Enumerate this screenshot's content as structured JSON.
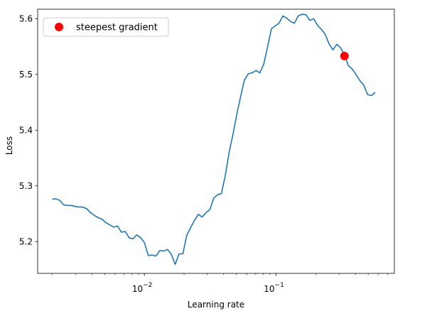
{
  "chart_data": {
    "type": "line",
    "title": "",
    "xlabel": "Learning rate",
    "ylabel": "Loss",
    "xscale": "log",
    "xlim": [
      0.00155,
      0.79
    ],
    "ylim": [
      5.143,
      5.617
    ],
    "grid": false,
    "legend_placement": "top-left",
    "x_ticks": [
      {
        "value": 0.01,
        "label": "10",
        "exp": "−2"
      },
      {
        "value": 0.1,
        "label": "10",
        "exp": "−1"
      }
    ],
    "y_ticks": [
      {
        "value": 5.2,
        "label": "5.2"
      },
      {
        "value": 5.3,
        "label": "5.3"
      },
      {
        "value": 5.4,
        "label": "5.4"
      },
      {
        "value": 5.5,
        "label": "5.5"
      },
      {
        "value": 5.6,
        "label": "5.6"
      }
    ],
    "series": [
      {
        "name": "",
        "color": "#1f77b4",
        "points": [
          [
            0.002,
            5.276
          ],
          [
            0.00213,
            5.277
          ],
          [
            0.00228,
            5.274
          ],
          [
            0.00244,
            5.266
          ],
          [
            0.00261,
            5.265
          ],
          [
            0.00279,
            5.265
          ],
          [
            0.00299,
            5.263
          ],
          [
            0.00319,
            5.262
          ],
          [
            0.00341,
            5.262
          ],
          [
            0.00365,
            5.259
          ],
          [
            0.00391,
            5.252
          ],
          [
            0.00418,
            5.247
          ],
          [
            0.00447,
            5.243
          ],
          [
            0.00478,
            5.24
          ],
          [
            0.00511,
            5.234
          ],
          [
            0.00547,
            5.23
          ],
          [
            0.00585,
            5.226
          ],
          [
            0.00626,
            5.228
          ],
          [
            0.00669,
            5.217
          ],
          [
            0.00716,
            5.218
          ],
          [
            0.00766,
            5.207
          ],
          [
            0.00819,
            5.205
          ],
          [
            0.00876,
            5.212
          ],
          [
            0.00937,
            5.207
          ],
          [
            0.01002,
            5.198
          ],
          [
            0.01071,
            5.175
          ],
          [
            0.01146,
            5.176
          ],
          [
            0.01226,
            5.174
          ],
          [
            0.01311,
            5.184
          ],
          [
            0.01402,
            5.183
          ],
          [
            0.01499,
            5.186
          ],
          [
            0.01604,
            5.177
          ],
          [
            0.01715,
            5.159
          ],
          [
            0.01834,
            5.178
          ],
          [
            0.01962,
            5.178
          ],
          [
            0.02098,
            5.211
          ],
          [
            0.02244,
            5.225
          ],
          [
            0.02401,
            5.238
          ],
          [
            0.02567,
            5.249
          ],
          [
            0.02746,
            5.244
          ],
          [
            0.02937,
            5.252
          ],
          [
            0.03141,
            5.257
          ],
          [
            0.0336,
            5.278
          ],
          [
            0.03593,
            5.284
          ],
          [
            0.03843,
            5.286
          ],
          [
            0.0411,
            5.318
          ],
          [
            0.04396,
            5.36
          ],
          [
            0.04702,
            5.392
          ],
          [
            0.05029,
            5.428
          ],
          [
            0.05378,
            5.46
          ],
          [
            0.05752,
            5.49
          ],
          [
            0.06153,
            5.501
          ],
          [
            0.0658,
            5.503
          ],
          [
            0.07038,
            5.507
          ],
          [
            0.07527,
            5.503
          ],
          [
            0.08051,
            5.518
          ],
          [
            0.0861,
            5.549
          ],
          [
            0.09209,
            5.582
          ],
          [
            0.09849,
            5.587
          ],
          [
            0.10534,
            5.592
          ],
          [
            0.11267,
            5.605
          ],
          [
            0.1205,
            5.601
          ],
          [
            0.12888,
            5.595
          ],
          [
            0.13784,
            5.592
          ],
          [
            0.14743,
            5.605
          ],
          [
            0.15768,
            5.608
          ],
          [
            0.16864,
            5.607
          ],
          [
            0.18037,
            5.597
          ],
          [
            0.19291,
            5.6
          ],
          [
            0.20632,
            5.588
          ],
          [
            0.22067,
            5.581
          ],
          [
            0.23601,
            5.572
          ],
          [
            0.25242,
            5.555
          ],
          [
            0.26998,
            5.544
          ],
          [
            0.28875,
            5.554
          ],
          [
            0.30882,
            5.548
          ],
          [
            0.3303,
            5.535
          ],
          [
            0.35326,
            5.516
          ],
          [
            0.37783,
            5.51
          ],
          [
            0.4041,
            5.5
          ],
          [
            0.43219,
            5.489
          ],
          [
            0.46224,
            5.481
          ],
          [
            0.49438,
            5.464
          ],
          [
            0.52876,
            5.462
          ],
          [
            0.56552,
            5.468
          ]
        ]
      }
    ],
    "markers": [
      {
        "name": "steepest gradient",
        "x": 0.3303,
        "y": 5.533,
        "color": "#ff0000"
      }
    ]
  }
}
